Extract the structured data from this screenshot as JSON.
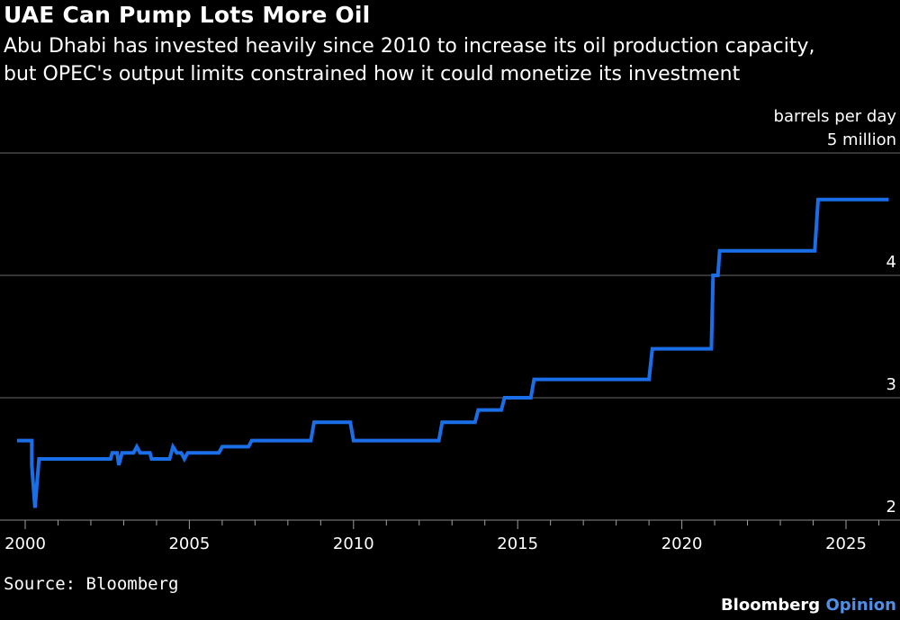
{
  "chart_data": {
    "type": "line",
    "title": "UAE Can Pump Lots More Oil",
    "subtitle": "Abu Dhabi has invested heavily since 2010 to increase its oil production capacity,\nbut OPEC's output limits constrained how it could monetize its investment",
    "unit_label": "barrels per day",
    "y_axis_side": "right",
    "ylim": [
      2,
      5
    ],
    "y_ticks": [
      {
        "value": 5,
        "label": "5 million"
      },
      {
        "value": 4,
        "label": "4"
      },
      {
        "value": 3,
        "label": "3"
      },
      {
        "value": 2,
        "label": "2"
      }
    ],
    "xlim": [
      2000,
      2026.5
    ],
    "x_ticks": [
      {
        "value": 2000,
        "label": "2000"
      },
      {
        "value": 2005,
        "label": "2005"
      },
      {
        "value": 2010,
        "label": "2010"
      },
      {
        "value": 2015,
        "label": "2015"
      },
      {
        "value": 2020,
        "label": "2020"
      },
      {
        "value": 2025,
        "label": "2025"
      }
    ],
    "grid": true,
    "series": [
      {
        "color": "#1a6ee8",
        "x": [
          1999.75,
          2000.2,
          2000.2,
          2000.3,
          2000.42,
          2000.42,
          2002.6,
          2002.65,
          2002.8,
          2002.85,
          2002.95,
          2003.05,
          2003.3,
          2003.4,
          2003.5,
          2003.6,
          2003.8,
          2003.85,
          2004.4,
          2004.5,
          2004.62,
          2004.75,
          2004.85,
          2004.95,
          2005.9,
          2006.0,
          2006.8,
          2006.9,
          2008.7,
          2008.8,
          2009.9,
          2010.0,
          2012.6,
          2012.7,
          2013.7,
          2013.8,
          2014.5,
          2014.6,
          2015.4,
          2015.5,
          2019.0,
          2019.1,
          2020.9,
          2020.95,
          2021.1,
          2021.15,
          2024.05,
          2024.15,
          2026.3
        ],
        "y": [
          2.65,
          2.65,
          2.45,
          2.1,
          2.5,
          2.5,
          2.5,
          2.55,
          2.55,
          2.45,
          2.55,
          2.55,
          2.55,
          2.6,
          2.55,
          2.55,
          2.55,
          2.5,
          2.5,
          2.6,
          2.55,
          2.55,
          2.5,
          2.55,
          2.55,
          2.6,
          2.6,
          2.65,
          2.65,
          2.8,
          2.8,
          2.65,
          2.65,
          2.8,
          2.8,
          2.9,
          2.9,
          3.0,
          3.0,
          3.15,
          3.15,
          3.4,
          3.4,
          4.0,
          4.0,
          4.2,
          4.2,
          4.62,
          4.62
        ]
      }
    ]
  },
  "footer": {
    "source": "Source: Bloomberg",
    "brand_main": "Bloomberg",
    "brand_sub": "Opinion"
  }
}
